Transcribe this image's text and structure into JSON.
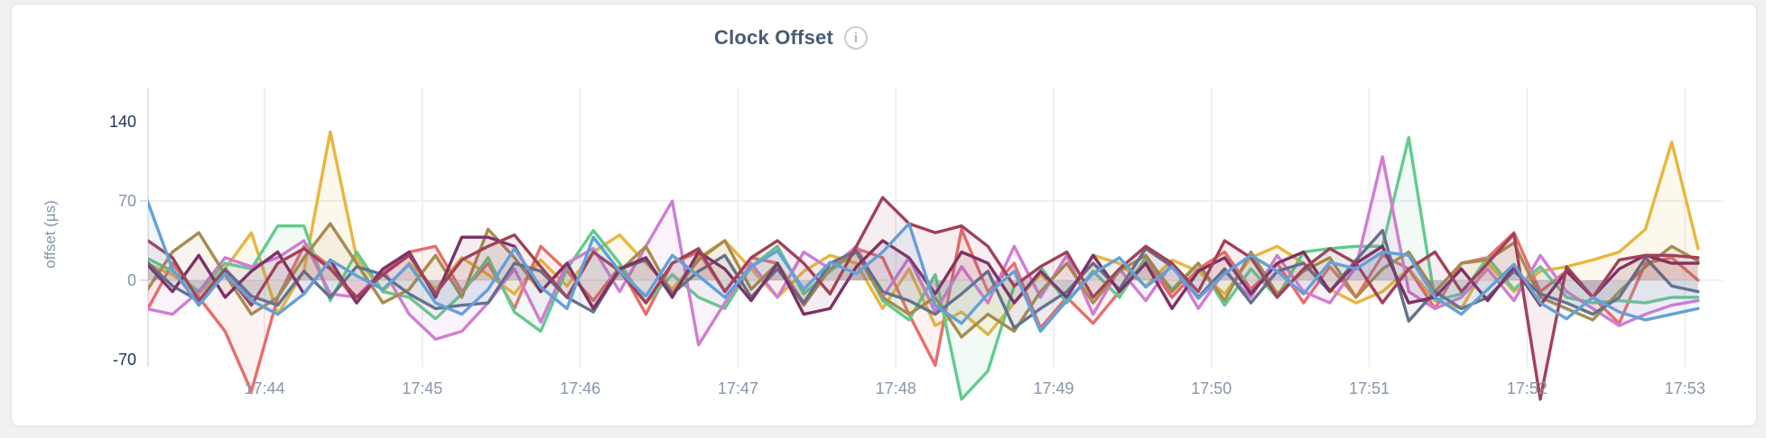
{
  "page": {
    "background": "#f1f1f2",
    "card_background": "#ffffff",
    "card_border": "#e4e4e6"
  },
  "header": {
    "info_icon_glyph": "i"
  },
  "axis_style": {
    "strong_tick_color": "#24335a",
    "muted_tick_color": "#8795ab",
    "grid_color": "#ececec",
    "axis_line_color": "#dcdfe4",
    "tick_dash_color": "#d9d9d9",
    "title_color": "#8795ab"
  },
  "chart_data": {
    "type": "line",
    "title": "Clock Offset",
    "xlabel": "",
    "ylabel": "offset (µs)",
    "unit": "µs",
    "legend": "none",
    "grid": true,
    "x_start": "17:43:15",
    "x_step_seconds": 10,
    "x_end": "17:53:05",
    "x_tick_labels": [
      "17:44",
      "17:45",
      "17:46",
      "17:47",
      "17:48",
      "17:49",
      "17:50",
      "17:51",
      "17:52",
      "17:53"
    ],
    "y_ticks": [
      {
        "label": "140",
        "value": 140,
        "emphasis": true,
        "gridline": false
      },
      {
        "label": "70",
        "value": 70,
        "emphasis": false,
        "gridline": true
      },
      {
        "label": "0",
        "value": 0,
        "emphasis": false,
        "gridline": true
      },
      {
        "label": "-70",
        "value": -70,
        "emphasis": true,
        "gridline": false
      }
    ],
    "ylim": [
      -105,
      170
    ],
    "fill_opacity": 0.09,
    "stroke_width": 3.4,
    "series": [
      {
        "name": "gold",
        "color": "#e8b63e",
        "values": [
          15,
          5,
          -12,
          10,
          42,
          -30,
          8,
          131,
          20,
          -10,
          15,
          -8,
          20,
          5,
          -12,
          18,
          -5,
          25,
          40,
          15,
          -8,
          20,
          35,
          10,
          -15,
          8,
          22,
          15,
          -25,
          10,
          -40,
          -28,
          -48,
          -20,
          5,
          -15,
          22,
          15,
          -5,
          18,
          8,
          -12,
          20,
          30,
          15,
          -8,
          -20,
          -10,
          10,
          -18,
          -25,
          15,
          -10,
          8,
          12,
          18,
          25,
          45,
          122,
          28
        ]
      },
      {
        "name": "salmon",
        "color": "#e66e6b",
        "values": [
          -28,
          15,
          -15,
          -45,
          -98,
          -15,
          30,
          12,
          -20,
          8,
          25,
          30,
          -10,
          15,
          -25,
          30,
          8,
          -18,
          12,
          -30,
          15,
          25,
          -10,
          20,
          15,
          -20,
          10,
          28,
          20,
          -30,
          -75,
          45,
          -10,
          15,
          -42,
          -15,
          -38,
          -10,
          18,
          -15,
          10,
          25,
          -8,
          15,
          -20,
          12,
          -15,
          22,
          10,
          -25,
          15,
          20,
          42,
          -10,
          8,
          -15,
          -38,
          15,
          20,
          0
        ]
      },
      {
        "name": "green",
        "color": "#62cb8c",
        "values": [
          20,
          8,
          -10,
          15,
          10,
          48,
          48,
          -18,
          25,
          -10,
          -15,
          -34,
          -12,
          20,
          -28,
          -45,
          10,
          44,
          15,
          -20,
          5,
          -15,
          -25,
          12,
          30,
          -12,
          8,
          25,
          -18,
          -35,
          5,
          -105,
          -80,
          -5,
          12,
          -20,
          8,
          -15,
          20,
          -8,
          15,
          -22,
          10,
          -15,
          25,
          28,
          30,
          30,
          126,
          -18,
          -12,
          20,
          -8,
          12,
          -15,
          -20,
          -18,
          -20,
          -15,
          -15
        ]
      },
      {
        "name": "orchid",
        "color": "#cf7ed2",
        "values": [
          -25,
          -30,
          -10,
          20,
          12,
          20,
          35,
          -12,
          -15,
          10,
          -30,
          -52,
          -45,
          -20,
          10,
          -37,
          15,
          28,
          -10,
          30,
          70,
          -57,
          -20,
          15,
          -15,
          25,
          10,
          30,
          -15,
          20,
          -28,
          12,
          -20,
          30,
          -15,
          22,
          -30,
          10,
          -18,
          15,
          -25,
          8,
          -15,
          22,
          -10,
          -20,
          12,
          109,
          -10,
          -25,
          -15,
          10,
          -18,
          22,
          -10,
          -25,
          -40,
          -30,
          -22,
          -18
        ]
      },
      {
        "name": "khaki",
        "color": "#a78c4f",
        "values": [
          -10,
          25,
          42,
          5,
          -30,
          -15,
          20,
          50,
          15,
          -20,
          -8,
          22,
          -15,
          45,
          20,
          -10,
          15,
          -25,
          8,
          30,
          -12,
          18,
          35,
          -8,
          15,
          -22,
          10,
          25,
          -15,
          -30,
          -15,
          -50,
          -30,
          -45,
          -10,
          15,
          -20,
          8,
          22,
          -10,
          15,
          -18,
          25,
          -12,
          8,
          20,
          -15,
          10,
          25,
          -10,
          15,
          18,
          33,
          -15,
          -25,
          -35,
          -10,
          12,
          30,
          17
        ]
      },
      {
        "name": "slate",
        "color": "#64718c",
        "values": [
          17,
          -5,
          -18,
          10,
          -14,
          -22,
          8,
          -15,
          12,
          5,
          -12,
          -25,
          -22,
          -20,
          15,
          8,
          -15,
          -28,
          10,
          18,
          -12,
          8,
          22,
          -15,
          10,
          -20,
          15,
          26,
          -10,
          -18,
          -30,
          -12,
          8,
          -42,
          -25,
          -10,
          15,
          -8,
          28,
          12,
          -15,
          10,
          -20,
          8,
          15,
          -10,
          18,
          44,
          -36,
          -10,
          -25,
          -15,
          8,
          -12,
          -20,
          -30,
          -15,
          20,
          -5,
          -10
        ]
      },
      {
        "name": "plum",
        "color": "#7c3265",
        "values": [
          15,
          -10,
          22,
          -15,
          8,
          25,
          -12,
          18,
          -20,
          10,
          25,
          -15,
          38,
          38,
          30,
          -10,
          15,
          -25,
          10,
          20,
          -15,
          25,
          10,
          -18,
          15,
          -30,
          -25,
          12,
          35,
          20,
          -12,
          25,
          15,
          -20,
          8,
          -15,
          22,
          -10,
          15,
          -25,
          8,
          20,
          -12,
          15,
          25,
          -10,
          15,
          30,
          -20,
          -15,
          10,
          -18,
          12,
          -22,
          8,
          -15,
          10,
          22,
          15,
          15
        ]
      },
      {
        "name": "maroon",
        "color": "#a04159",
        "values": [
          36,
          20,
          -18,
          8,
          -22,
          15,
          28,
          10,
          -15,
          5,
          22,
          -12,
          18,
          30,
          40,
          12,
          -15,
          25,
          8,
          -20,
          15,
          28,
          -10,
          20,
          35,
          15,
          -12,
          30,
          73,
          50,
          42,
          48,
          30,
          -5,
          12,
          25,
          -15,
          10,
          30,
          15,
          -10,
          35,
          20,
          -15,
          10,
          28,
          15,
          -20,
          10,
          25,
          -10,
          15,
          41,
          -105,
          12,
          -15,
          18,
          22,
          22,
          20
        ]
      },
      {
        "name": "blue",
        "color": "#64a0d8",
        "values": [
          73,
          10,
          -22,
          6,
          -18,
          -30,
          -12,
          18,
          4,
          -8,
          14,
          -20,
          -30,
          -8,
          28,
          -6,
          -25,
          38,
          8,
          -14,
          22,
          4,
          -15,
          12,
          26,
          -8,
          16,
          6,
          25,
          50,
          -22,
          -38,
          -12,
          8,
          -45,
          -18,
          6,
          20,
          -6,
          12,
          -16,
          6,
          22,
          8,
          -12,
          16,
          10,
          25,
          22,
          -15,
          -30,
          -8,
          14,
          -20,
          -34,
          -15,
          -28,
          -35,
          -30,
          -25
        ]
      }
    ]
  }
}
